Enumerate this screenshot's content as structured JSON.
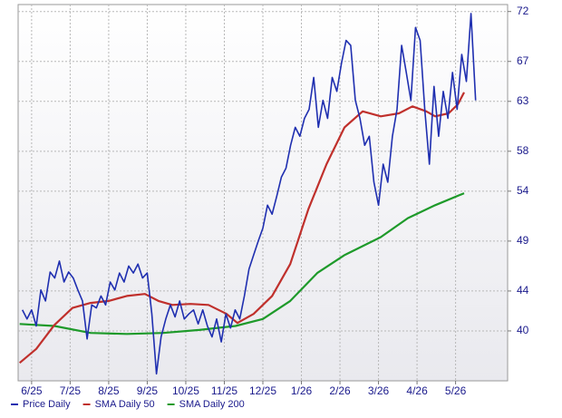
{
  "chart_data": {
    "type": "line",
    "xlim": [
      -0.35,
      12.35
    ],
    "xticks": [
      {
        "value": 0,
        "label": "6/25"
      },
      {
        "value": 1,
        "label": "7/25"
      },
      {
        "value": 2,
        "label": "8/25"
      },
      {
        "value": 3,
        "label": "9/25"
      },
      {
        "value": 4,
        "label": "10/25"
      },
      {
        "value": 5,
        "label": "11/25"
      },
      {
        "value": 6,
        "label": "12/25"
      },
      {
        "value": 7,
        "label": "1/26"
      },
      {
        "value": 8,
        "label": "2/26"
      },
      {
        "value": 9,
        "label": "3/26"
      },
      {
        "value": 10,
        "label": "4/26"
      },
      {
        "value": 11,
        "label": "5/26"
      }
    ],
    "ylim": [
      35,
      72.7
    ],
    "yticks": [
      40,
      44,
      49,
      54,
      58,
      63,
      67,
      72
    ],
    "grid": true,
    "legend": "bottom-left",
    "series": [
      {
        "name": "Price Daily",
        "color": "#1f2fb0",
        "x": [
          -0.24,
          -0.12,
          0,
          0.12,
          0.24,
          0.36,
          0.48,
          0.6,
          0.72,
          0.84,
          0.96,
          1.08,
          1.2,
          1.32,
          1.44,
          1.56,
          1.68,
          1.8,
          1.92,
          2.04,
          2.16,
          2.28,
          2.4,
          2.52,
          2.64,
          2.76,
          2.88,
          3,
          3.12,
          3.24,
          3.36,
          3.48,
          3.6,
          3.72,
          3.84,
          3.96,
          4.08,
          4.2,
          4.32,
          4.44,
          4.56,
          4.68,
          4.8,
          4.92,
          5.04,
          5.16,
          5.28,
          5.4,
          5.52,
          5.64,
          5.76,
          5.88,
          6,
          6.12,
          6.24,
          6.36,
          6.48,
          6.6,
          6.72,
          6.84,
          6.96,
          7.08,
          7.2,
          7.32,
          7.44,
          7.56,
          7.68,
          7.8,
          7.92,
          8.04,
          8.16,
          8.28,
          8.4,
          8.52,
          8.64,
          8.76,
          8.88,
          9,
          9.12,
          9.24,
          9.36,
          9.48,
          9.6,
          9.72,
          9.84,
          9.96,
          10.08,
          10.2,
          10.32,
          10.44,
          10.56,
          10.68,
          10.8,
          10.92,
          11.04,
          11.16,
          11.28,
          11.4,
          11.52
        ],
        "values": [
          42.1,
          41.2,
          42.1,
          40.5,
          44.1,
          43.0,
          45.9,
          45.3,
          47.0,
          44.9,
          45.9,
          45.3,
          44.1,
          43.0,
          39.2,
          42.6,
          42.3,
          43.5,
          42.6,
          44.9,
          44.1,
          45.8,
          44.9,
          46.5,
          45.8,
          46.7,
          45.3,
          45.8,
          41.7,
          35.7,
          39.4,
          41.2,
          42.6,
          41.4,
          43.0,
          41.2,
          41.7,
          42.1,
          40.7,
          42.1,
          40.5,
          39.4,
          41.2,
          38.9,
          41.7,
          40.3,
          42.1,
          41.2,
          43.5,
          46.2,
          47.6,
          49.0,
          50.3,
          52.6,
          51.7,
          53.5,
          55.4,
          56.3,
          58.6,
          60.4,
          59.5,
          61.3,
          62.2,
          65.4,
          60.4,
          63.1,
          61.3,
          65.4,
          64.0,
          66.8,
          69.1,
          68.6,
          63.1,
          61.3,
          58.6,
          59.5,
          54.9,
          52.6,
          56.7,
          54.9,
          59.5,
          62.2,
          68.6,
          65.9,
          63.1,
          70.4,
          69.1,
          62.2,
          56.7,
          64.5,
          59.5,
          64.0,
          61.3,
          65.9,
          62.2,
          67.7,
          65.0,
          71.8,
          63.1
        ]
      },
      {
        "name": "SMA Daily 50",
        "color": "#c0302c",
        "x": [
          -0.31,
          0.12,
          0.59,
          1.06,
          1.53,
          2.0,
          2.47,
          2.94,
          3.29,
          3.65,
          4.12,
          4.59,
          5.06,
          5.34,
          5.76,
          6.24,
          6.71,
          7.18,
          7.65,
          8.12,
          8.59,
          9.06,
          9.53,
          9.88,
          10.24,
          10.47,
          10.82,
          11.06,
          11.22
        ],
        "values": [
          36.8,
          38.2,
          40.6,
          42.3,
          42.8,
          43.0,
          43.5,
          43.7,
          43.0,
          42.6,
          42.7,
          42.6,
          41.7,
          40.8,
          41.7,
          43.5,
          46.7,
          52.2,
          56.7,
          60.4,
          62.0,
          61.5,
          61.8,
          62.5,
          62.0,
          61.5,
          61.8,
          62.7,
          63.9
        ]
      },
      {
        "name": "SMA Daily 200",
        "color": "#1e9a2a",
        "x": [
          -0.31,
          0.59,
          1.53,
          2.47,
          3.41,
          4.35,
          5.29,
          6.0,
          6.71,
          7.41,
          8.12,
          9.06,
          9.76,
          10.47,
          11.22
        ],
        "values": [
          40.7,
          40.5,
          39.8,
          39.7,
          39.8,
          40.1,
          40.5,
          41.2,
          43.0,
          45.8,
          47.6,
          49.4,
          51.3,
          52.6,
          53.8
        ]
      }
    ]
  }
}
